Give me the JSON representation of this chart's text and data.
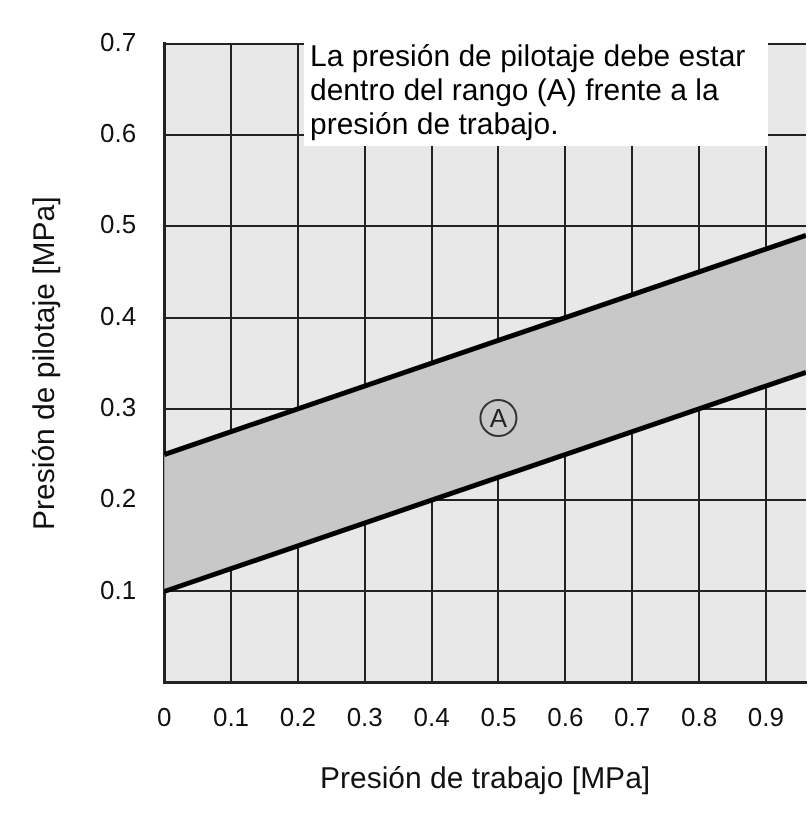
{
  "chart_data": {
    "type": "line",
    "xlabel": "Presión de trabajo [MPa]",
    "ylabel": "Presión de pilotaje [MPa]",
    "xlim": [
      0,
      0.96
    ],
    "xticks": [
      0,
      0.1,
      0.2,
      0.3,
      0.4,
      0.5,
      0.6,
      0.7,
      0.8,
      0.9
    ],
    "ylim": [
      0,
      0.7
    ],
    "yticks": [
      0.1,
      0.2,
      0.3,
      0.4,
      0.5,
      0.6,
      0.7
    ],
    "grid": true,
    "legend": false,
    "marker": "none",
    "line_style": "solid",
    "series": [
      {
        "color": "#000000",
        "x": [
          0,
          0.4,
          0.96
        ],
        "values": [
          0.1,
          0.2,
          0.34
        ]
      },
      {
        "color": "#000000",
        "x": [
          0,
          0.6,
          0.96
        ],
        "values": [
          0.25,
          0.4,
          0.49
        ],
        "lower": [
          0.1,
          0.25,
          0.34
        ],
        "upper": [
          0.25,
          0.4,
          0.49
        ]
      }
    ],
    "annotations": [
      "La presión de pilotaje debe estar dentro del rango (A) frente a la presión de trabajo.",
      {
        "text": "A",
        "x": 0.5,
        "y": 0.29
      }
    ]
  }
}
